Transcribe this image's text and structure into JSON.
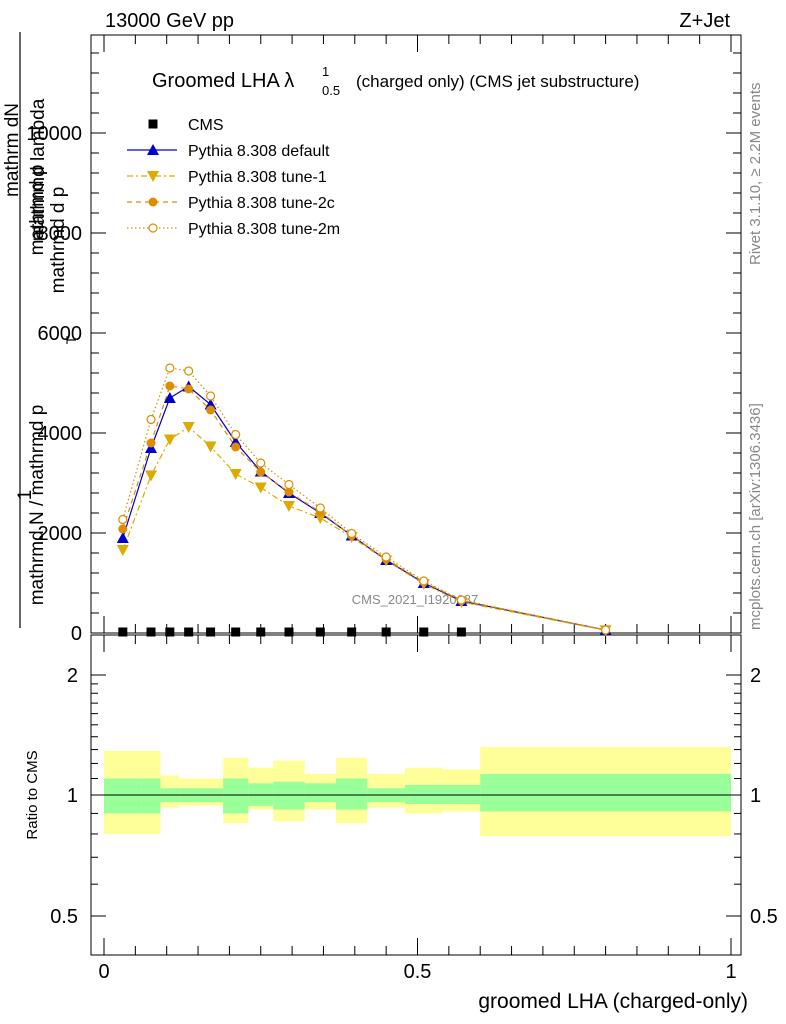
{
  "header": {
    "energy": "13000 GeV pp",
    "process": "Z+Jet",
    "title_main": "Groomed LHA λ",
    "title_sup": "1",
    "title_sub": "0.5",
    "title_rest": "(charged only) (CMS jet substructure)",
    "watermark": "CMS_2021_I1920187",
    "rivet_label": "Rivet 3.1.10, ≥ 2.2M events",
    "mcplots_label": "mcplots.cern.ch [arXiv:1306.3436]"
  },
  "legend": [
    {
      "label": "CMS",
      "color": "#000000",
      "marker": "square",
      "line": "none"
    },
    {
      "label": "Pythia 8.308 default",
      "color": "#0000cc",
      "marker": "triangle-up",
      "line": "solid"
    },
    {
      "label": "Pythia 8.308 tune-1",
      "color": "#ddaa00",
      "marker": "triangle-down",
      "line": "dashdot"
    },
    {
      "label": "Pythia 8.308 tune-2c",
      "color": "#e08c00",
      "marker": "circle",
      "line": "dashed"
    },
    {
      "label": "Pythia 8.308 tune-2m",
      "color": "#e08c00",
      "marker": "circle-open",
      "line": "dotted"
    }
  ],
  "chart_data": [
    {
      "type": "line",
      "xlabel": "",
      "ylabel_parts": [
        "1",
        "mathrmd N / mathrmd p",
        "T",
        "mathrmd d p",
        "mathrmd d N",
        "mathrmd lambda"
      ],
      "ylabel_top": "mathrm dN",
      "ylabel_frac_num": "1",
      "ylabel_frac_den": "mathrmd N / mathrmd p",
      "ylabel_tag_mid": "mathrmd p",
      "ylabel_tag_T": "T",
      "ylabel_top2": "mathrmd d p",
      "ylabel_top3": "mathrmd lambda",
      "xlim": [
        0,
        1
      ],
      "ylim": [
        0,
        12000
      ],
      "yticks": [
        0,
        2000,
        4000,
        6000,
        8000,
        10000
      ],
      "ytick_labels": [
        "0",
        "2000",
        "4000",
        "6000",
        "8000",
        "10000"
      ],
      "x": [
        0.03,
        0.075,
        0.105,
        0.135,
        0.17,
        0.21,
        0.25,
        0.295,
        0.345,
        0.395,
        0.45,
        0.51,
        0.57,
        0.8
      ],
      "series": [
        {
          "name": "CMS",
          "values": [
            0,
            0,
            0,
            0,
            0,
            0,
            0,
            0,
            0,
            0,
            0,
            0,
            0,
            null
          ]
        },
        {
          "name": "Pythia 8.308 default",
          "values": [
            1900,
            3700,
            4700,
            4930,
            4570,
            3820,
            3230,
            2800,
            2400,
            1950,
            1460,
            1000,
            640,
            60
          ]
        },
        {
          "name": "Pythia 8.308 tune-1",
          "values": [
            1660,
            3150,
            3870,
            4120,
            3730,
            3180,
            2910,
            2540,
            2300,
            1920,
            1450,
            980,
            620,
            55
          ]
        },
        {
          "name": "Pythia 8.308 tune-2c",
          "values": [
            2080,
            3800,
            4940,
            4880,
            4460,
            3720,
            3220,
            2820,
            2420,
            1950,
            1480,
            1020,
            650,
            60
          ]
        },
        {
          "name": "Pythia 8.308 tune-2m",
          "values": [
            2270,
            4270,
            5300,
            5240,
            4740,
            3970,
            3400,
            2970,
            2500,
            1990,
            1520,
            1040,
            660,
            60
          ]
        }
      ]
    },
    {
      "type": "area",
      "xlabel": "groomed LHA (charged-only)",
      "ylabel": "Ratio to CMS",
      "xlim": [
        0,
        1
      ],
      "ylim": [
        0.4,
        2.3
      ],
      "xticks": [
        0,
        0.5,
        1
      ],
      "xtick_labels": [
        "0",
        "0.5",
        "1"
      ],
      "yticks": [
        0.5,
        1,
        2
      ],
      "ytick_labels": [
        "0.5",
        "1",
        "2"
      ],
      "bin_edges": [
        0,
        0.06,
        0.09,
        0.12,
        0.15,
        0.19,
        0.23,
        0.27,
        0.32,
        0.37,
        0.42,
        0.48,
        0.54,
        0.6,
        1.0
      ],
      "band_inner_low": [
        0.9,
        0.9,
        0.96,
        0.96,
        0.96,
        0.9,
        0.94,
        0.92,
        0.96,
        0.92,
        0.96,
        0.95,
        0.95,
        0.91,
        0.83
      ],
      "band_inner_high": [
        1.1,
        1.1,
        1.04,
        1.04,
        1.04,
        1.1,
        1.07,
        1.08,
        1.07,
        1.1,
        1.04,
        1.06,
        1.06,
        1.13,
        1.25
      ],
      "band_outer_low": [
        0.8,
        0.8,
        0.93,
        0.94,
        0.94,
        0.85,
        0.92,
        0.86,
        0.92,
        0.85,
        0.93,
        0.9,
        0.91,
        0.79,
        0.6
      ],
      "band_outer_high": [
        1.29,
        1.29,
        1.12,
        1.1,
        1.1,
        1.24,
        1.17,
        1.22,
        1.13,
        1.24,
        1.13,
        1.17,
        1.16,
        1.32,
        1.52
      ],
      "reference": 1,
      "inner_color": "#99ff99",
      "outer_color": "#ffff99"
    }
  ]
}
